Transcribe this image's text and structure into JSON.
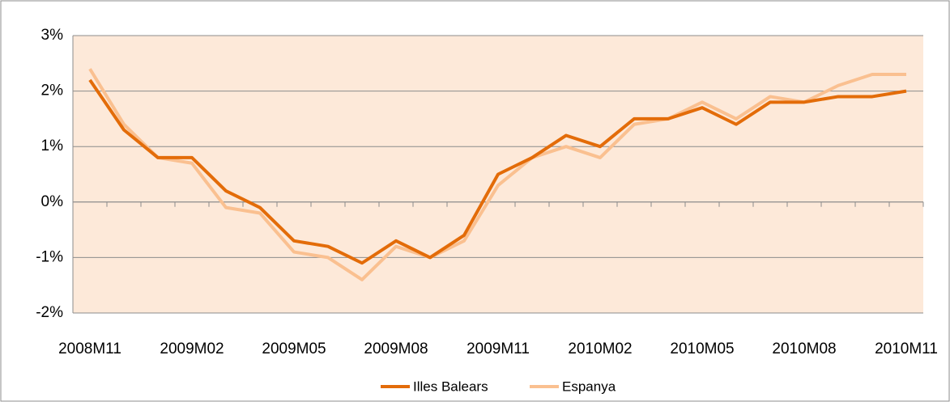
{
  "chart_data": {
    "type": "line",
    "categories": [
      "2008M11",
      null,
      null,
      "2009M02",
      null,
      null,
      "2009M05",
      null,
      null,
      "2009M08",
      null,
      null,
      "2009M11",
      null,
      null,
      "2010M02",
      null,
      null,
      "2010M05",
      null,
      null,
      "2010M08",
      null,
      null,
      "2010M11"
    ],
    "series": [
      {
        "name": "Illes Balears",
        "color": "#e36c09",
        "values": [
          2.2,
          1.3,
          0.8,
          0.8,
          0.2,
          -0.1,
          -0.7,
          -0.8,
          -1.1,
          -0.7,
          -1.0,
          -0.6,
          0.5,
          0.8,
          1.2,
          1.0,
          1.5,
          1.5,
          1.7,
          1.4,
          1.8,
          1.8,
          1.9,
          1.9,
          2.0
        ]
      },
      {
        "name": "Espanya",
        "color": "#fac090",
        "values": [
          2.4,
          1.4,
          0.8,
          0.7,
          -0.1,
          -0.2,
          -0.9,
          -1.0,
          -1.4,
          -0.8,
          -1.0,
          -0.7,
          0.3,
          0.8,
          1.0,
          0.8,
          1.4,
          1.5,
          1.8,
          1.5,
          1.9,
          1.8,
          2.1,
          2.3,
          2.3
        ]
      }
    ],
    "ylim": [
      -2,
      3
    ],
    "yticks": [
      {
        "value": -2,
        "label": "-2%"
      },
      {
        "value": -1,
        "label": "-1%"
      },
      {
        "value": 0,
        "label": "0%"
      },
      {
        "value": 1,
        "label": "1%"
      },
      {
        "value": 2,
        "label": "2%"
      },
      {
        "value": 3,
        "label": "3%"
      }
    ],
    "grid": true,
    "legend": "bottom",
    "plot_background": "#fde9d9"
  }
}
